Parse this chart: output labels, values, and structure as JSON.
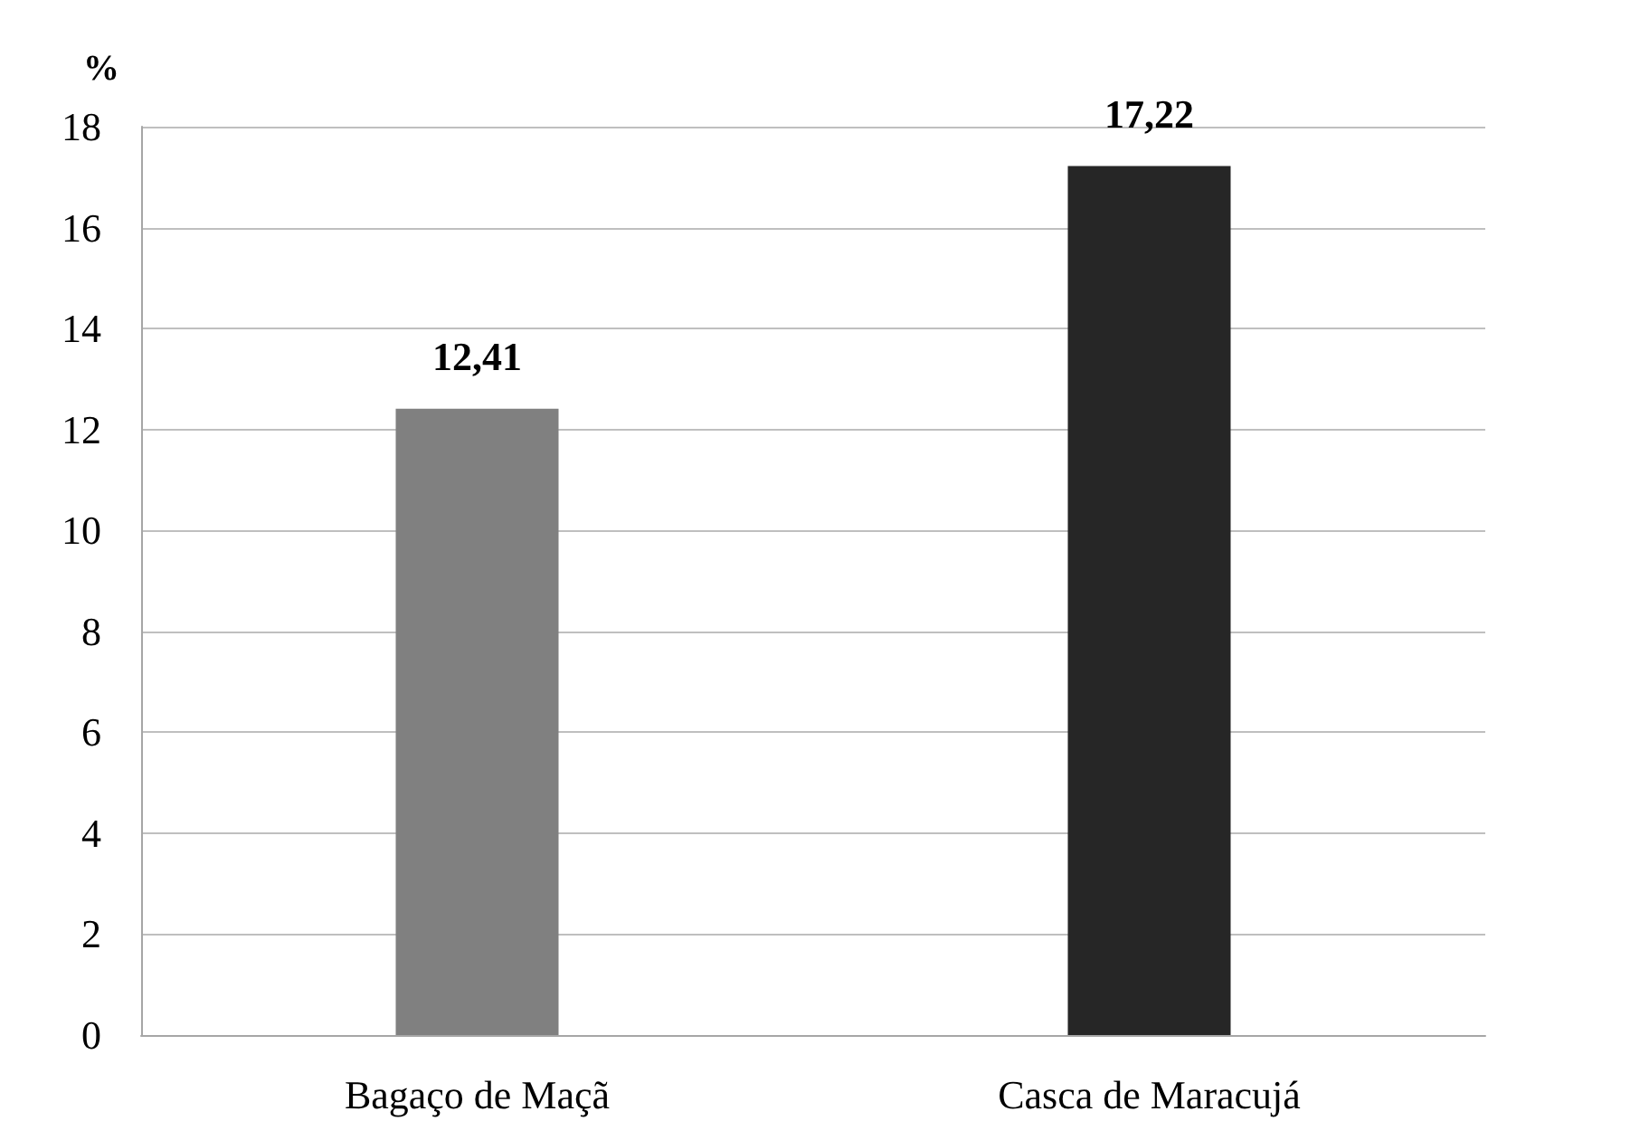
{
  "chart_data": {
    "type": "bar",
    "ylabel": "%",
    "categories": [
      "Bagaço de Maçã",
      "Casca de Maracujá"
    ],
    "values": [
      12.41,
      17.22
    ],
    "colors": [
      "#808080",
      "#262626"
    ],
    "value_labels": [
      "12,41",
      "17,22"
    ],
    "ylim": [
      0,
      18
    ],
    "yticks": [
      0,
      2,
      4,
      6,
      8,
      10,
      12,
      14,
      16,
      18
    ],
    "grid": "y"
  }
}
